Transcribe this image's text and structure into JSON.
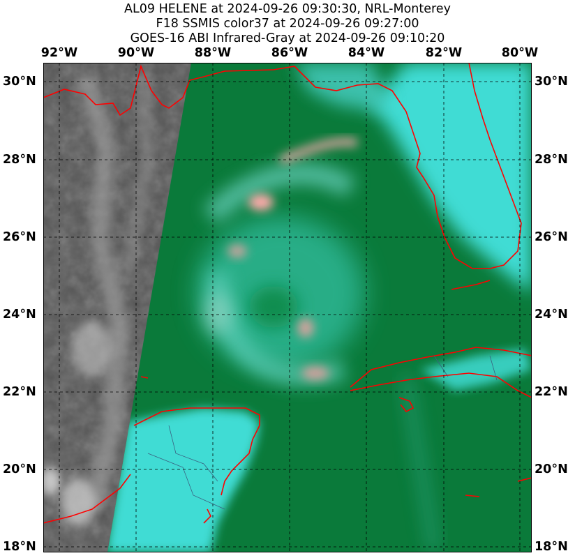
{
  "title": {
    "line1": "AL09 HELENE at 2024-09-26 09:30:30, NRL-Monterey",
    "line2": "F18 SSMIS color37 at 2024-09-26 09:27:00",
    "line3": "GOES-16 ABI Infrared-Gray at 2024-09-26 09:10:20"
  },
  "lon_labels": [
    "92°W",
    "90°W",
    "88°W",
    "86°W",
    "84°W",
    "82°W",
    "80°W"
  ],
  "lat_labels": [
    "30°N",
    "28°N",
    "26°N",
    "24°N",
    "22°N",
    "20°N",
    "18°N"
  ],
  "colors": {
    "ocean_ssmis": "#0a7a3a",
    "land_ssmis": "#3fdcd4",
    "convection": "#f0a7a7",
    "ir_background": "#5a5a5a",
    "coastline": "#ff0000",
    "grid": "#000000"
  }
}
